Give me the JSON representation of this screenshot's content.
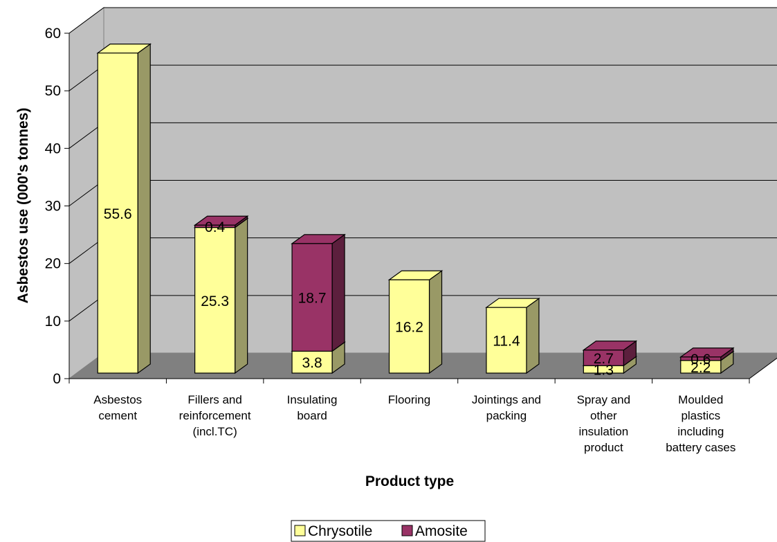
{
  "chart_data": {
    "type": "bar",
    "stacked": true,
    "three_d": true,
    "categories": [
      [
        "Asbestos",
        "cement"
      ],
      [
        "Fillers and",
        "reinforcement",
        "(incl.TC)"
      ],
      [
        "Insulating",
        "board"
      ],
      [
        "Flooring"
      ],
      [
        "Jointings and",
        "packing"
      ],
      [
        "Spray and",
        "other",
        "insulation",
        "product"
      ],
      [
        "Moulded",
        "plastics",
        "including",
        "battery cases"
      ]
    ],
    "series": [
      {
        "name": "Chrysotile",
        "color": "#ffff99",
        "side_color": "#999966",
        "values": [
          55.6,
          25.3,
          3.8,
          16.2,
          11.4,
          1.3,
          2.2
        ]
      },
      {
        "name": "Amosite",
        "color": "#993366",
        "side_color": "#5c1f3d",
        "values": [
          null,
          0.4,
          18.7,
          null,
          null,
          2.7,
          0.6
        ]
      }
    ],
    "xlabel": "Product type",
    "ylabel": "Asbestos use (000's tonnes)",
    "ylim": [
      0,
      60
    ],
    "yticks": [
      0,
      10,
      20,
      30,
      40,
      50,
      60
    ],
    "grid": true,
    "legend_position": "bottom",
    "colors": {
      "wall": "#c0c0c0",
      "floor": "#808080",
      "grid": "#000000"
    }
  }
}
